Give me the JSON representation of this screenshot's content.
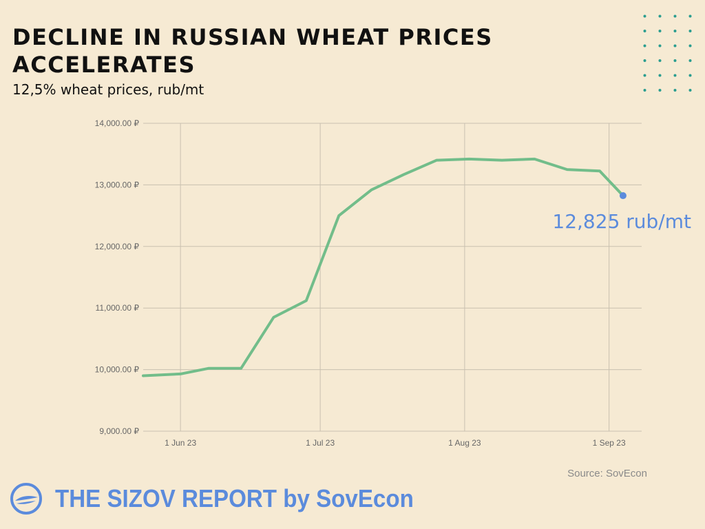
{
  "header": {
    "title": "DECLINE IN RUSSIAN WHEAT PRICES ACCELERATES",
    "subtitle": "12,5% wheat prices, rub/mt"
  },
  "source": "Source: SovEcon",
  "brand": {
    "text": "THE SIZOV REPORT by SovEcon",
    "icon": "sovecon-logo-icon",
    "color": "#5b8bdc"
  },
  "colors": {
    "background": "#f6ead3",
    "line": "#72bd8a",
    "marker": "#5b8bdc",
    "dots": "#2a9d8f"
  },
  "chart_data": {
    "type": "line",
    "title": "",
    "xlabel": "",
    "ylabel": "",
    "ylim": [
      9000,
      14000
    ],
    "xlim": [
      "2023-05-24",
      "2023-09-08"
    ],
    "y_ticks": [
      9000,
      10000,
      11000,
      12000,
      13000,
      14000
    ],
    "y_tick_labels": [
      "9,000.00 ₽",
      "10,000.00 ₽",
      "11,000.00 ₽",
      "12,000.00 ₽",
      "13,000.00 ₽",
      "14,000.00 ₽"
    ],
    "x_ticks": [
      "2023-06-01",
      "2023-07-01",
      "2023-08-01",
      "2023-09-01"
    ],
    "x_tick_labels": [
      "1 Jun 23",
      "1 Jul 23",
      "1 Aug 23",
      "1 Sep 23"
    ],
    "grid": true,
    "series": [
      {
        "name": "",
        "x": [
          "2023-05-24",
          "2023-06-01",
          "2023-06-07",
          "2023-06-14",
          "2023-06-21",
          "2023-06-28",
          "2023-07-05",
          "2023-07-12",
          "2023-07-19",
          "2023-07-26",
          "2023-08-02",
          "2023-08-09",
          "2023-08-16",
          "2023-08-23",
          "2023-08-30",
          "2023-09-04"
        ],
        "y": [
          9900,
          9930,
          10020,
          10020,
          10850,
          11120,
          12500,
          12920,
          13170,
          13400,
          13420,
          13400,
          13420,
          13250,
          13225,
          12825
        ]
      }
    ],
    "annotation": {
      "x": "2023-09-04",
      "y": 12825,
      "text": "12,825 rub/mt"
    }
  }
}
